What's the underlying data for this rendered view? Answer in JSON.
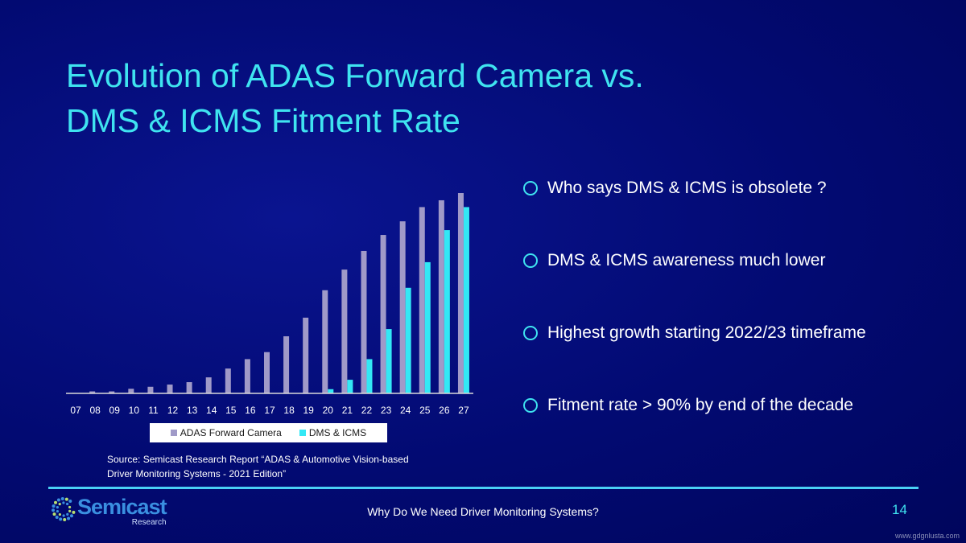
{
  "title": {
    "line1": "Evolution of ADAS Forward Camera vs.",
    "line2": "DMS & ICMS Fitment Rate"
  },
  "colors": {
    "background": "#00076e",
    "accent": "#3fe3f0",
    "adas": "#a09ac8",
    "dms": "#33e8f5"
  },
  "chart_data": {
    "type": "bar",
    "categories": [
      "07",
      "08",
      "09",
      "10",
      "11",
      "12",
      "13",
      "14",
      "15",
      "16",
      "17",
      "18",
      "19",
      "20",
      "21",
      "22",
      "23",
      "24",
      "25",
      "26",
      "27"
    ],
    "series": [
      {
        "name": "ADAS Forward Camera",
        "values": [
          0,
          1,
          1,
          2.3,
          3.3,
          4.4,
          5.6,
          8,
          12.4,
          17.1,
          20.6,
          28.5,
          37.8,
          51.5,
          61.8,
          71.1,
          79.1,
          85.9,
          93,
          96.4,
          100
        ]
      },
      {
        "name": "DMS & ICMS",
        "values": [
          0,
          0,
          0,
          0,
          0,
          0,
          0,
          0,
          0,
          0,
          0,
          0,
          0,
          2.1,
          6.8,
          17.1,
          32.1,
          52.7,
          65.5,
          81.5,
          93
        ]
      }
    ],
    "ylim": [
      0,
      100
    ],
    "grid": false,
    "y_axis_shown": false,
    "legend": "bottom"
  },
  "source": {
    "line1": "Source: Semicast Research Report “ADAS & Automotive Vision-based",
    "line2": "Driver Monitoring Systems - 2021 Edition”"
  },
  "bullets": [
    "Who says DMS & ICMS is obsolete ?",
    "DMS & ICMS awareness much lower",
    "Highest growth starting 2022/23 timeframe",
    "Fitment rate > 90% by end of the decade"
  ],
  "footer": {
    "text": "Why Do We Need Driver Monitoring Systems?",
    "page": "14"
  },
  "logo": {
    "name": "Semicast",
    "sub": "Research"
  },
  "watermark": "www.gdgnlusta.com"
}
